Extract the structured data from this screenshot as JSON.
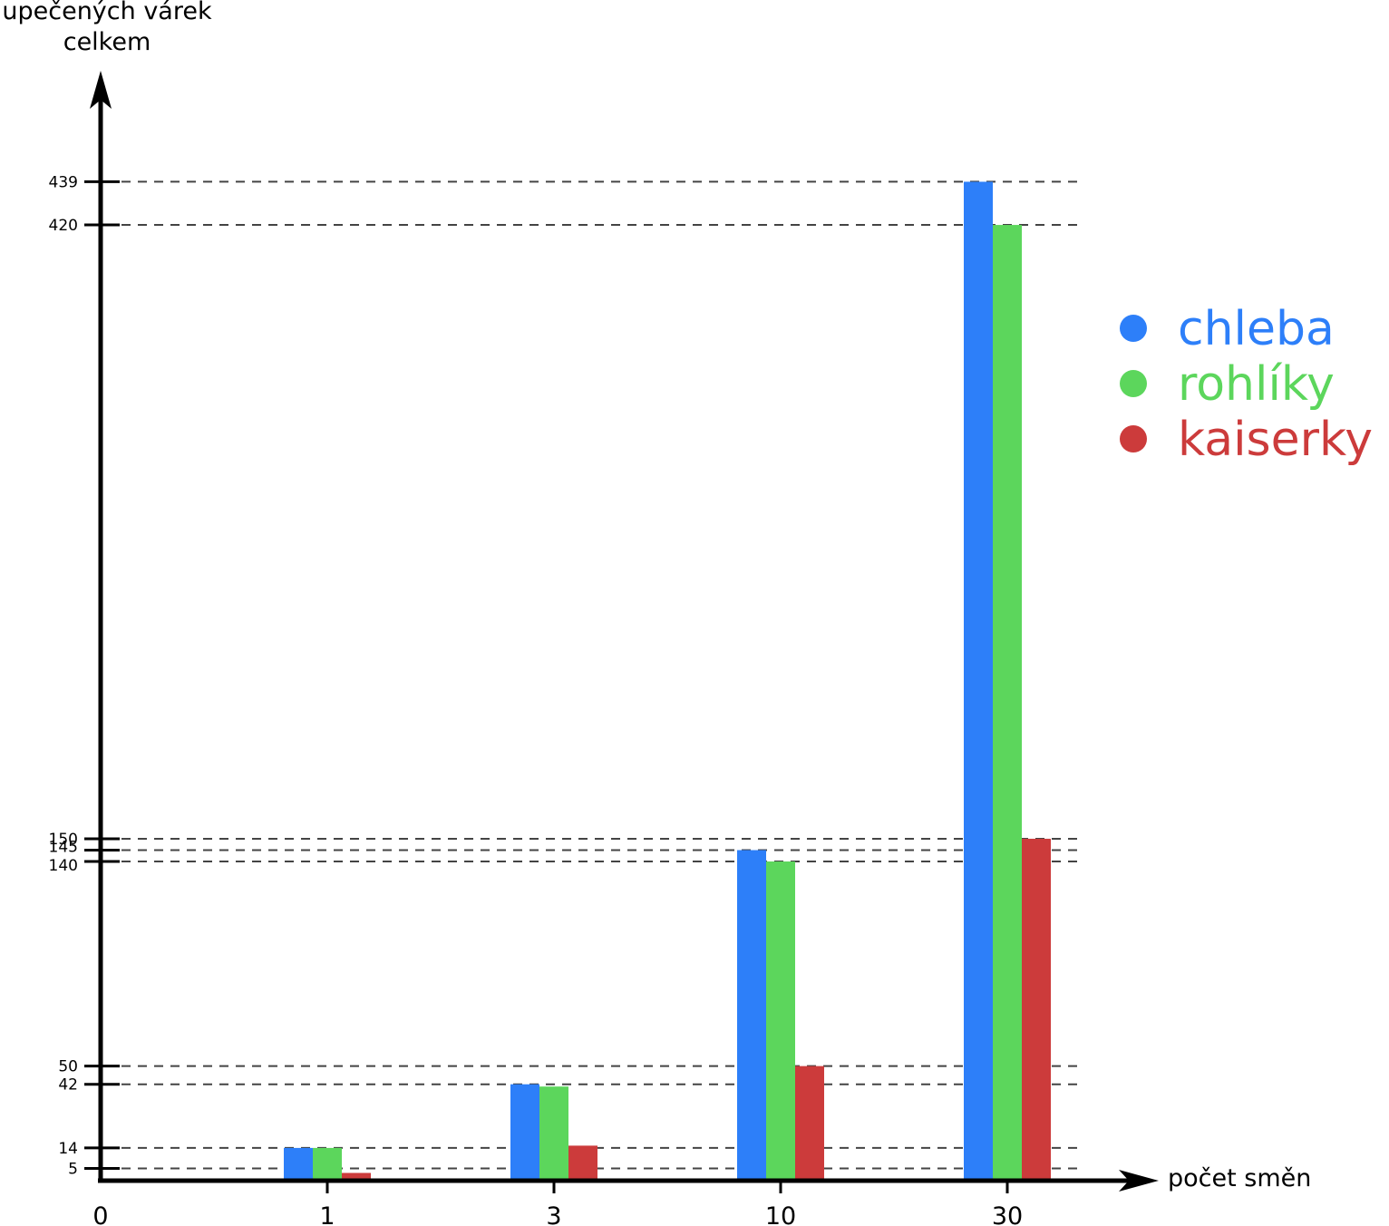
{
  "chart_data": {
    "type": "bar",
    "ylabel_lines": [
      "upečených várek",
      "celkem"
    ],
    "xlabel": "počet směn",
    "origin_label": "0",
    "categories": [
      "1",
      "3",
      "10",
      "30"
    ],
    "series": [
      {
        "name": "chleba",
        "color": "#2d7ff9",
        "values": [
          14,
          42,
          145,
          439
        ]
      },
      {
        "name": "rohlíky",
        "color": "#5cd65c",
        "values": [
          14,
          41,
          140,
          420
        ]
      },
      {
        "name": "kaiserky",
        "color": "#cc3b3b",
        "values": [
          3,
          15,
          50,
          150
        ]
      }
    ],
    "y_ticks": [
      5,
      14,
      42,
      50,
      140,
      145,
      150,
      420,
      439
    ],
    "y_tick_labels": [
      "5",
      "14",
      "42",
      "50",
      "140",
      "145",
      "150",
      "420",
      "439"
    ],
    "grid": "dashed at tick values",
    "legend_position": "right"
  }
}
